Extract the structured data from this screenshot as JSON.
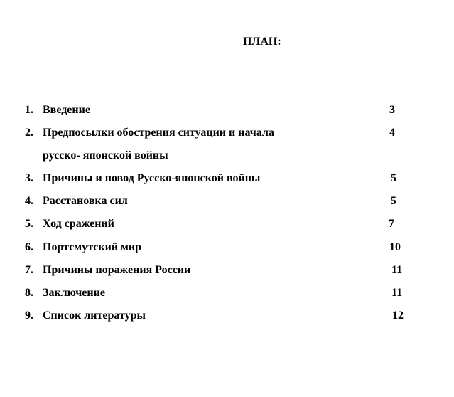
{
  "title": "ПЛАН:",
  "items": [
    {
      "num": "1.",
      "text": "Введение",
      "page": "3"
    },
    {
      "num": "2.",
      "text": "Предпосылки обострения ситуации и начала",
      "continuation": "русско- японской войны",
      "page": "4"
    },
    {
      "num": "3.",
      "text": "Причины и повод Русско-японской войны",
      "page": "5"
    },
    {
      "num": "4.",
      "text": "Расстановка сил",
      "page": "5"
    },
    {
      "num": "5.",
      "text": "Ход сражений",
      "page": "7"
    },
    {
      "num": "6.",
      "text": "Портсмутский мир",
      "page": "10"
    },
    {
      "num": "7.",
      "text": "Причины поражения России",
      "page": "11"
    },
    {
      "num": "8.",
      "text": "Заключение",
      "page": "11"
    },
    {
      "num": "9.",
      "text": "Список литературы",
      "page": "12"
    }
  ]
}
